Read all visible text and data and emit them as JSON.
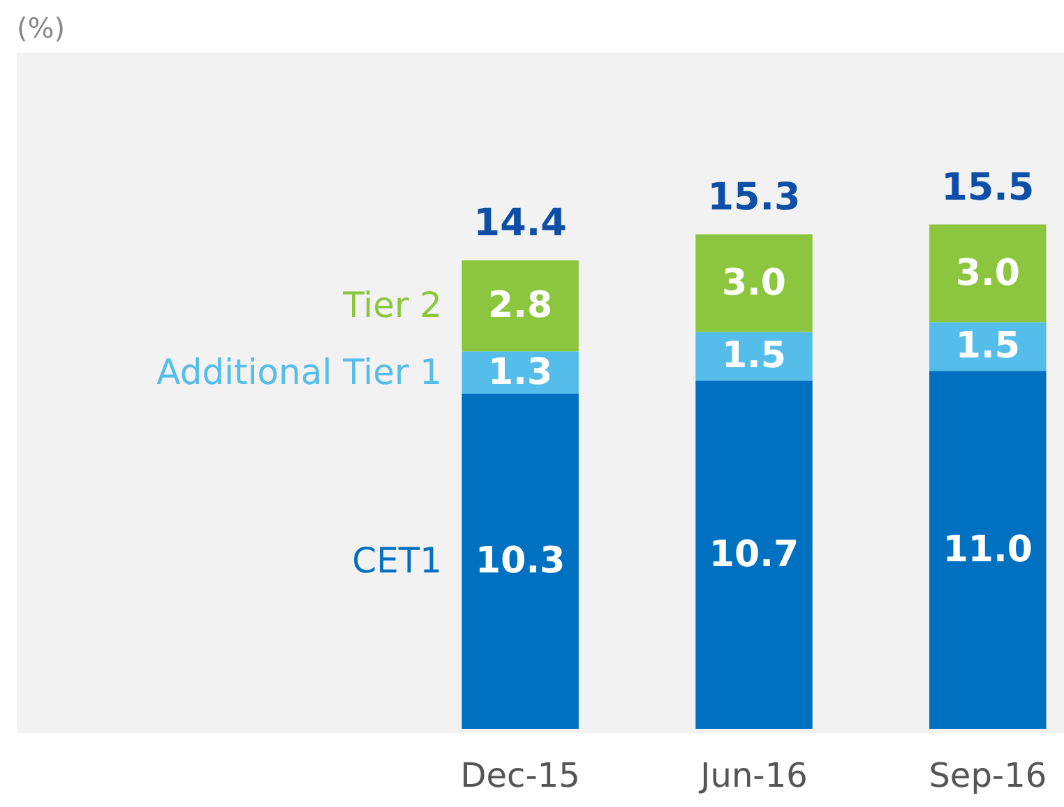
{
  "chart_data": {
    "type": "bar",
    "stacked": true,
    "annotations": [
      "(%)"
    ],
    "categories": [
      "Dec-15",
      "Jun-16",
      "Sep-16"
    ],
    "series": [
      {
        "name": "CET1",
        "color": "#0070c0",
        "values": [
          10.3,
          10.7,
          11.0
        ],
        "value_labels": [
          "10.3",
          "10.7",
          "11.0"
        ]
      },
      {
        "name": "Additional Tier 1",
        "color": "#55bde9",
        "values": [
          1.3,
          1.5,
          1.5
        ],
        "value_labels": [
          "1.3",
          "1.5",
          "1.5"
        ]
      },
      {
        "name": "Tier 2",
        "color": "#8cc63e",
        "values": [
          2.8,
          3.0,
          3.0
        ],
        "value_labels": [
          "2.8",
          "3.0",
          "3.0"
        ]
      }
    ],
    "totals": [
      "14.4",
      "15.3",
      "15.5"
    ],
    "legend": false,
    "grid": false
  }
}
